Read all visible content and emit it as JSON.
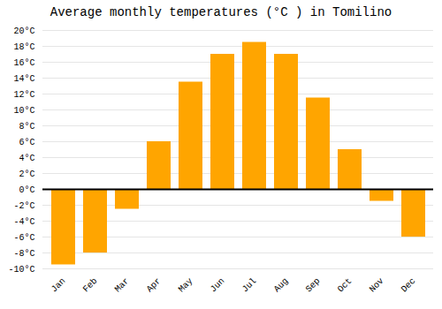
{
  "chart_data": {
    "type": "bar",
    "title": "Average monthly temperatures (°C ) in Tomilino",
    "categories": [
      "Jan",
      "Feb",
      "Mar",
      "Apr",
      "May",
      "Jun",
      "Jul",
      "Aug",
      "Sep",
      "Oct",
      "Nov",
      "Dec"
    ],
    "values": [
      -9.5,
      -8.0,
      -2.5,
      6.0,
      13.5,
      17.0,
      18.5,
      17.0,
      11.5,
      5.0,
      -1.5,
      -6.0
    ],
    "color": "#FFA500",
    "ylim": [
      -10,
      20
    ],
    "yticks": [
      {
        "value": -10,
        "label": "-10°C"
      },
      {
        "value": -8,
        "label": "-8°C"
      },
      {
        "value": -6,
        "label": "-6°C"
      },
      {
        "value": -4,
        "label": "-4°C"
      },
      {
        "value": -2,
        "label": "-2°C"
      },
      {
        "value": 0,
        "label": "0°C"
      },
      {
        "value": 2,
        "label": "2°C"
      },
      {
        "value": 4,
        "label": "4°C"
      },
      {
        "value": 6,
        "label": "6°C"
      },
      {
        "value": 8,
        "label": "8°C"
      },
      {
        "value": 10,
        "label": "10°C"
      },
      {
        "value": 12,
        "label": "12°C"
      },
      {
        "value": 14,
        "label": "14°C"
      },
      {
        "value": 16,
        "label": "16°C"
      },
      {
        "value": 18,
        "label": "18°C"
      },
      {
        "value": 20,
        "label": "20°C"
      }
    ],
    "grid": true
  }
}
